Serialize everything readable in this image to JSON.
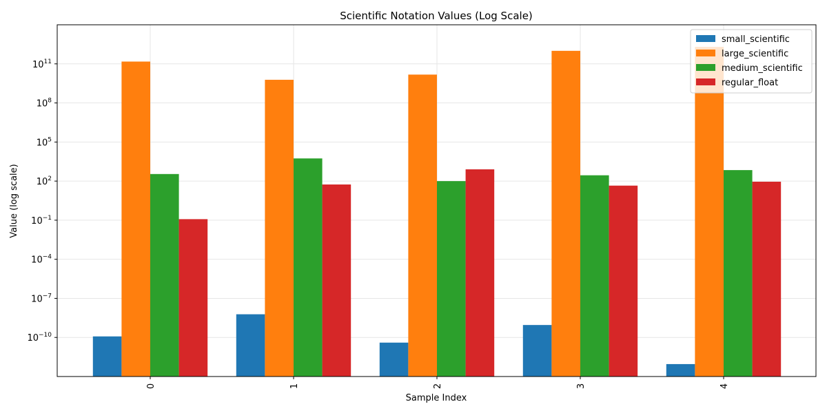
{
  "chart_data": {
    "type": "bar",
    "title": "Scientific Notation Values (Log Scale)",
    "xlabel": "Sample Index",
    "ylabel": "Value (log scale)",
    "yscale": "log",
    "ylim": [
      1e-13,
      100000000000000.0
    ],
    "y_ticks": [
      {
        "exp": 11,
        "base": "10",
        "sup": "11"
      },
      {
        "exp": 8,
        "base": "10",
        "sup": "8"
      },
      {
        "exp": 5,
        "base": "10",
        "sup": "5"
      },
      {
        "exp": 2,
        "base": "10",
        "sup": "2"
      },
      {
        "exp": -1,
        "base": "10",
        "sup": "−1"
      },
      {
        "exp": -4,
        "base": "10",
        "sup": "−4"
      },
      {
        "exp": -7,
        "base": "10",
        "sup": "−7"
      },
      {
        "exp": -10,
        "base": "10",
        "sup": "−10"
      }
    ],
    "categories": [
      "0",
      "1",
      "2",
      "3",
      "4"
    ],
    "series": [
      {
        "name": "small_scientific",
        "color": "#1f77b4",
        "values": [
          1.2e-10,
          6e-09,
          4e-11,
          9e-10,
          9e-13
        ]
      },
      {
        "name": "large_scientific",
        "color": "#ff7f0e",
        "values": [
          150000000000.0,
          6000000000.0,
          15000000000.0,
          1000000000000.0,
          2000000000000.0
        ]
      },
      {
        "name": "medium_scientific",
        "color": "#2ca02c",
        "values": [
          350,
          5500,
          100,
          280,
          700
        ]
      },
      {
        "name": "regular_float",
        "color": "#d62728",
        "values": [
          0.12,
          55,
          800,
          45,
          90
        ]
      }
    ],
    "grid": true,
    "legend_position": "top-right"
  }
}
